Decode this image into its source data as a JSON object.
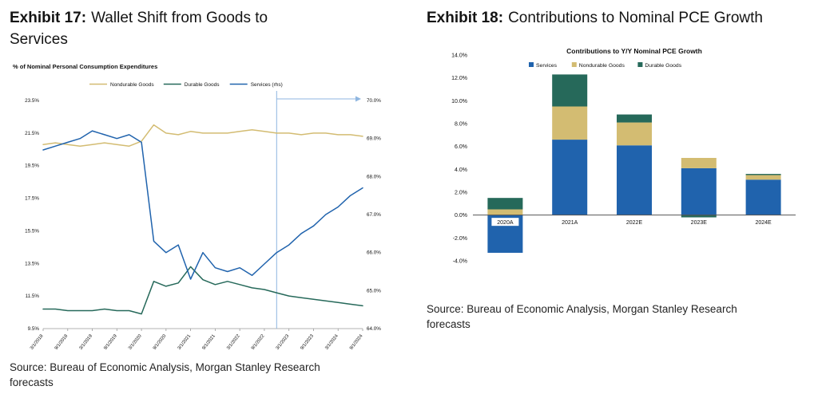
{
  "exhibit17": {
    "label": "Exhibit 17:",
    "title": "Wallet Shift from Goods to Services",
    "source": "Source: Bureau of Economic Analysis, Morgan Stanley Research forecasts"
  },
  "exhibit18": {
    "label": "Exhibit 18:",
    "title": "Contributions to Nominal PCE Growth",
    "source": "Source: Bureau of Economic Analysis, Morgan Stanley Research forecasts"
  },
  "colors": {
    "services_blue": "#2063ad",
    "nondurable_tan": "#d3bc72",
    "durable_green": "#26695a",
    "forecast_line_blue": "#8fb6e0",
    "axis_gray": "#9a9a9a",
    "zero_line": "#555555"
  },
  "chart_data": [
    {
      "id": "wallet-shift-line",
      "type": "line",
      "title": "% of Nominal Personal Consumption Expenditures",
      "n_points": 27,
      "x_labels": [
        "3/1/2018",
        "9/1/2018",
        "3/1/2019",
        "9/1/2019",
        "3/1/2020",
        "9/1/2020",
        "3/1/2021",
        "9/1/2021",
        "3/1/2022",
        "9/1/2022",
        "3/1/2023",
        "9/1/2023",
        "3/1/2024",
        "9/1/2024"
      ],
      "left_axis": {
        "min": 9.5,
        "max": 23.5,
        "ticks": [
          "23.5%",
          "21.5%",
          "19.5%",
          "17.5%",
          "15.5%",
          "13.5%",
          "11.5%",
          "9.5%"
        ]
      },
      "right_axis": {
        "min": 64.0,
        "max": 70.0,
        "ticks": [
          "70.0%",
          "69.0%",
          "68.0%",
          "67.0%",
          "66.0%",
          "65.0%",
          "64.0%"
        ]
      },
      "grid": false,
      "legend_position": "top",
      "forecast_line": {
        "at_index": 19,
        "color": "#8fb6e0"
      },
      "series": [
        {
          "name": "Nondurable Goods",
          "axis": "left",
          "color": "#d3bc72",
          "values": [
            20.8,
            20.9,
            20.8,
            20.7,
            20.8,
            20.9,
            20.8,
            20.7,
            21.0,
            22.0,
            21.5,
            21.4,
            21.6,
            21.5,
            21.5,
            21.5,
            21.6,
            21.7,
            21.6,
            21.5,
            21.5,
            21.4,
            21.5,
            21.5,
            21.4,
            21.4,
            21.3
          ]
        },
        {
          "name": "Durable Goods",
          "axis": "left",
          "color": "#26695a",
          "values": [
            10.7,
            10.7,
            10.6,
            10.6,
            10.6,
            10.7,
            10.6,
            10.6,
            10.4,
            12.4,
            12.1,
            12.3,
            13.3,
            12.5,
            12.2,
            12.4,
            12.2,
            12.0,
            11.9,
            11.7,
            11.5,
            11.4,
            11.3,
            11.2,
            11.1,
            11.0,
            10.9
          ]
        },
        {
          "name": "Services (rhs)",
          "axis": "right",
          "color": "#2063ad",
          "values": [
            68.7,
            68.8,
            68.9,
            69.0,
            69.2,
            69.1,
            69.0,
            69.1,
            68.9,
            66.3,
            66.0,
            66.2,
            65.3,
            66.0,
            65.6,
            65.5,
            65.6,
            65.4,
            65.7,
            66.0,
            66.2,
            66.5,
            66.7,
            67.0,
            67.2,
            67.5,
            67.7
          ]
        }
      ]
    },
    {
      "id": "pce-contributions-bar",
      "type": "bar",
      "stacked": true,
      "title": "Contributions to Y/Y Nominal PCE Growth",
      "categories": [
        "2020A",
        "2021A",
        "2022E",
        "2023E",
        "2024E"
      ],
      "y_axis": {
        "min": -4.0,
        "max": 14.0,
        "ticks": [
          "14.0%",
          "12.0%",
          "10.0%",
          "8.0%",
          "6.0%",
          "4.0%",
          "2.0%",
          "0.0%",
          "-2.0%",
          "-4.0%"
        ]
      },
      "grid": false,
      "legend_position": "top",
      "series": [
        {
          "name": "Services",
          "color": "#2063ad",
          "values": [
            -3.3,
            6.6,
            6.1,
            4.1,
            3.1
          ]
        },
        {
          "name": "Nondurable Goods",
          "color": "#d3bc72",
          "values": [
            0.5,
            2.9,
            2.0,
            0.9,
            0.4
          ]
        },
        {
          "name": "Durable Goods",
          "color": "#26695a",
          "values": [
            1.0,
            2.8,
            0.7,
            -0.2,
            0.1
          ]
        }
      ]
    }
  ]
}
